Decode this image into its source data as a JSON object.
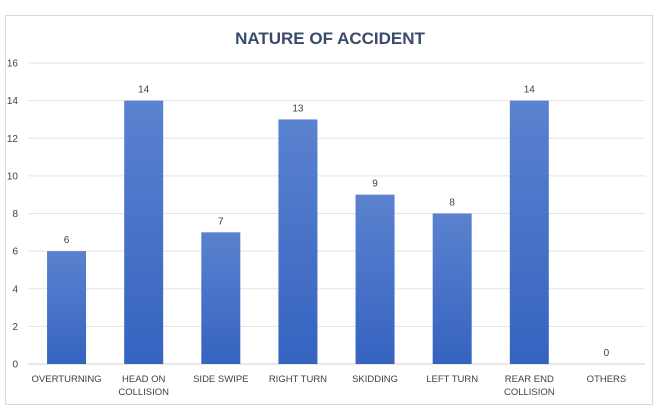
{
  "chart_data": {
    "type": "bar",
    "title": "NATURE OF ACCIDENT",
    "xlabel": "",
    "ylabel": "",
    "categories": [
      [
        "OVERTURNING"
      ],
      [
        "HEAD ON",
        "COLLISION"
      ],
      [
        "SIDE SWIPE"
      ],
      [
        "RIGHT TURN"
      ],
      [
        "SKIDDING"
      ],
      [
        "LEFT TURN"
      ],
      [
        "REAR END",
        "COLLISION"
      ],
      [
        "OTHERS"
      ]
    ],
    "values": [
      6,
      14,
      7,
      13,
      9,
      8,
      14,
      0
    ],
    "ylim": [
      0,
      16
    ],
    "yticks": [
      0,
      2,
      4,
      6,
      8,
      10,
      12,
      14,
      16
    ],
    "grid": true,
    "legend": "none",
    "colors": {
      "bar_top": "#5a82cf",
      "bar_bottom": "#3563c0"
    }
  }
}
